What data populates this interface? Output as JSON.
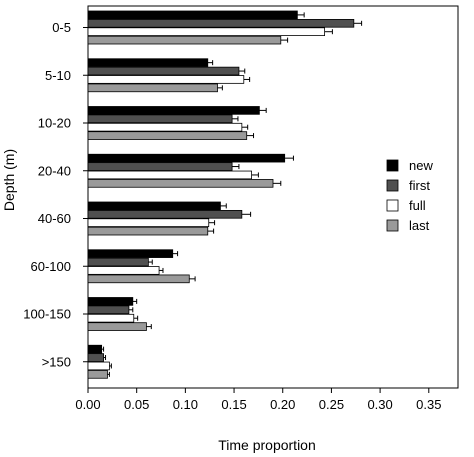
{
  "chart_data": {
    "type": "bar",
    "orientation": "horizontal",
    "title": "",
    "xlabel": "Time proportion",
    "ylabel": "Depth (m)",
    "xlim": [
      0,
      0.38
    ],
    "xticks": [
      "0.00",
      "0.05",
      "0.10",
      "0.15",
      "0.20",
      "0.25",
      "0.30",
      "0.35"
    ],
    "xtick_values": [
      0,
      0.05,
      0.1,
      0.15,
      0.2,
      0.25,
      0.3,
      0.35
    ],
    "categories": [
      "0-5",
      "5-10",
      "10-20",
      "20-40",
      "40-60",
      "60-100",
      "100-150",
      ">150"
    ],
    "legend_position": "right",
    "grid": false,
    "error_bars": true,
    "series": [
      {
        "name": "new",
        "color": "#000000",
        "values": [
          0.215,
          0.123,
          0.176,
          0.202,
          0.136,
          0.087,
          0.046,
          0.014
        ],
        "errors": [
          0.007,
          0.005,
          0.007,
          0.009,
          0.006,
          0.005,
          0.004,
          0.002
        ]
      },
      {
        "name": "first",
        "color": "#505050",
        "values": [
          0.273,
          0.155,
          0.148,
          0.148,
          0.158,
          0.062,
          0.042,
          0.016
        ],
        "errors": [
          0.008,
          0.006,
          0.006,
          0.007,
          0.009,
          0.004,
          0.004,
          0.002
        ]
      },
      {
        "name": "full",
        "color": "#ffffff",
        "values": [
          0.243,
          0.16,
          0.158,
          0.168,
          0.124,
          0.073,
          0.047,
          0.022
        ],
        "errors": [
          0.008,
          0.006,
          0.006,
          0.007,
          0.006,
          0.004,
          0.004,
          0.002
        ]
      },
      {
        "name": "last",
        "color": "#9a9a9a",
        "values": [
          0.198,
          0.133,
          0.163,
          0.19,
          0.123,
          0.104,
          0.06,
          0.02
        ],
        "errors": [
          0.007,
          0.005,
          0.007,
          0.008,
          0.006,
          0.006,
          0.005,
          0.002
        ]
      }
    ]
  }
}
